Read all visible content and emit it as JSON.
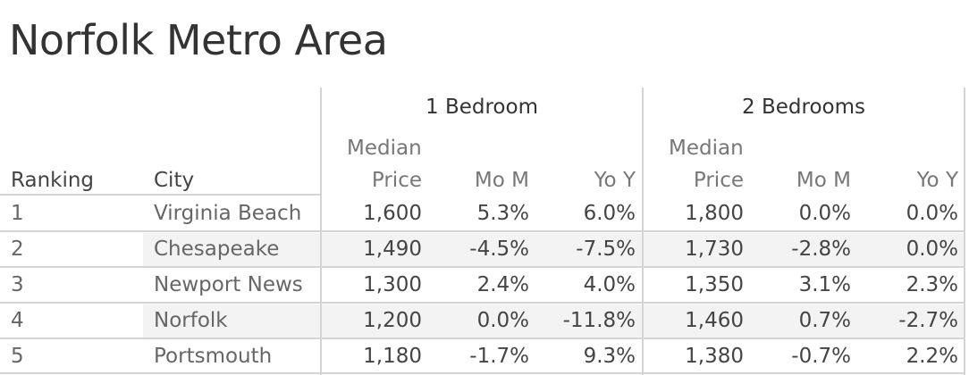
{
  "title": "Norfolk Metro Area",
  "groups": [
    "1 Bedroom",
    "2 Bedrooms"
  ],
  "columns": {
    "ranking": "Ranking",
    "city": "City",
    "price_line1": "Median",
    "price_line2": "Price",
    "mom": "Mo M",
    "yoy": "Yo Y"
  },
  "rows": [
    {
      "rank": "1",
      "city": "Virginia Beach",
      "b1_price": "1,600",
      "b1_mom": "5.3%",
      "b1_yoy": "6.0%",
      "b2_price": "1,800",
      "b2_mom": "0.0%",
      "b2_yoy": "0.0%"
    },
    {
      "rank": "2",
      "city": "Chesapeake",
      "b1_price": "1,490",
      "b1_mom": "-4.5%",
      "b1_yoy": "-7.5%",
      "b2_price": "1,730",
      "b2_mom": "-2.8%",
      "b2_yoy": "0.0%"
    },
    {
      "rank": "3",
      "city": "Newport News",
      "b1_price": "1,300",
      "b1_mom": "2.4%",
      "b1_yoy": "4.0%",
      "b2_price": "1,350",
      "b2_mom": "3.1%",
      "b2_yoy": "2.3%"
    },
    {
      "rank": "4",
      "city": "Norfolk",
      "b1_price": "1,200",
      "b1_mom": "0.0%",
      "b1_yoy": "-11.8%",
      "b2_price": "1,460",
      "b2_mom": "0.7%",
      "b2_yoy": "-2.7%"
    },
    {
      "rank": "5",
      "city": "Portsmouth",
      "b1_price": "1,180",
      "b1_mom": "-1.7%",
      "b1_yoy": "9.3%",
      "b2_price": "1,380",
      "b2_mom": "-0.7%",
      "b2_yoy": "2.2%"
    }
  ],
  "chart_data": {
    "type": "table",
    "title": "Norfolk Metro Area",
    "header_groups": [
      "1 Bedroom",
      "2 Bedrooms"
    ],
    "columns": [
      "Ranking",
      "City",
      "1 Bedroom Median Price",
      "1 Bedroom Mo M",
      "1 Bedroom Yo Y",
      "2 Bedrooms Median Price",
      "2 Bedrooms Mo M",
      "2 Bedrooms Yo Y"
    ],
    "values": [
      [
        1,
        "Virginia Beach",
        1600,
        5.3,
        6.0,
        1800,
        0.0,
        0.0
      ],
      [
        2,
        "Chesapeake",
        1490,
        -4.5,
        -7.5,
        1730,
        -2.8,
        0.0
      ],
      [
        3,
        "Newport News",
        1300,
        2.4,
        4.0,
        1350,
        3.1,
        2.3
      ],
      [
        4,
        "Norfolk",
        1200,
        0.0,
        -11.8,
        1460,
        0.7,
        -2.7
      ],
      [
        5,
        "Portsmouth",
        1180,
        -1.7,
        9.3,
        1380,
        -0.7,
        2.2
      ]
    ]
  }
}
